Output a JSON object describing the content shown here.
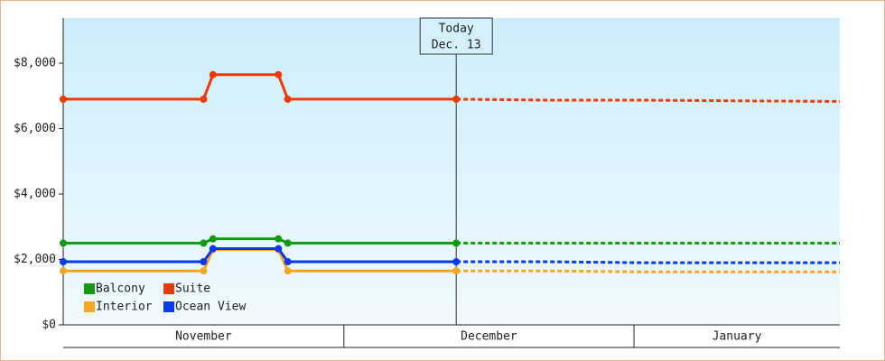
{
  "chart_data": {
    "type": "line",
    "x": [
      0,
      15,
      16,
      23,
      24,
      42,
      52,
      62,
      72,
      83
    ],
    "xlim": [
      0,
      83
    ],
    "xbands": [
      {
        "label": "November",
        "from": 0,
        "to": 30
      },
      {
        "label": "December",
        "from": 30,
        "to": 61
      },
      {
        "label": "January",
        "from": 61,
        "to": 83
      }
    ],
    "ylim": [
      0,
      9380
    ],
    "yticks": [
      {
        "value": 0,
        "label": "$0"
      },
      {
        "value": 2000,
        "label": "$2,000"
      },
      {
        "value": 4000,
        "label": "$4,000"
      },
      {
        "value": 6000,
        "label": "$6,000"
      },
      {
        "value": 8000,
        "label": "$8,000"
      }
    ],
    "grid": false,
    "today": {
      "x": 42,
      "lines": [
        "Today",
        "Dec. 13"
      ]
    },
    "series": [
      {
        "name": "Balcony",
        "color": "#129a12",
        "values": [
          2500,
          2500,
          2630,
          2630,
          2500,
          2500,
          null,
          null,
          null,
          null
        ],
        "forecast": [
          null,
          null,
          null,
          null,
          null,
          2500,
          2500,
          2500,
          2500,
          2500
        ]
      },
      {
        "name": "Suite",
        "color": "#ee3a0a",
        "values": [
          6900,
          6900,
          7650,
          7650,
          6900,
          6900,
          null,
          null,
          null,
          null
        ],
        "forecast": [
          null,
          null,
          null,
          null,
          null,
          6900,
          6870,
          6870,
          6850,
          6830
        ]
      },
      {
        "name": "Interior",
        "color": "#f5a623",
        "values": [
          1650,
          1650,
          2300,
          2300,
          1650,
          1650,
          null,
          null,
          null,
          null
        ],
        "forecast": [
          null,
          null,
          null,
          null,
          null,
          1650,
          1650,
          1620,
          1620,
          1620
        ]
      },
      {
        "name": "Ocean View",
        "color": "#0a3aee",
        "values": [
          1930,
          1930,
          2330,
          2330,
          1930,
          1930,
          null,
          null,
          null,
          null
        ],
        "forecast": [
          null,
          null,
          null,
          null,
          null,
          1930,
          1930,
          1900,
          1900,
          1900
        ]
      }
    ]
  }
}
